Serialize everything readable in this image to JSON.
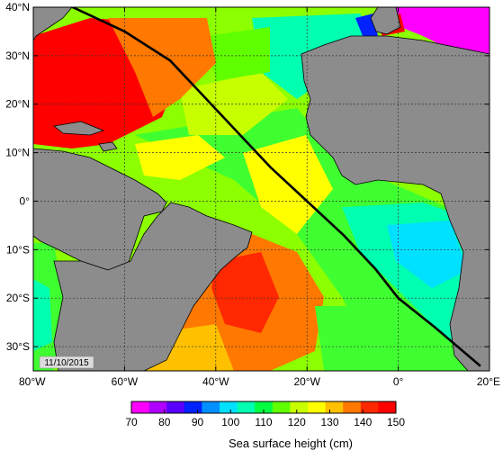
{
  "map": {
    "date_label": "11/10/2015",
    "lat_ticks": [
      "40°N",
      "30°N",
      "20°N",
      "10°N",
      "0°",
      "10°S",
      "20°S",
      "30°S"
    ],
    "lon_ticks": [
      "80°W",
      "60°W",
      "40°W",
      "20°W",
      "0°",
      "20°E"
    ],
    "lat_values": [
      40,
      30,
      20,
      10,
      0,
      -10,
      -20,
      -30
    ],
    "lon_values": [
      -80,
      -60,
      -40,
      -20,
      0,
      20
    ],
    "extent": {
      "lon_min": -80,
      "lon_max": 20,
      "lat_min": -35,
      "lat_max": 40
    },
    "grid_lines": true,
    "ship_track": {
      "color": "#000000",
      "points": [
        [
          -72.5,
          40.5
        ],
        [
          -60,
          35
        ],
        [
          -50,
          29
        ],
        [
          -43,
          22
        ],
        [
          -35,
          14
        ],
        [
          -28,
          7
        ],
        [
          -20,
          0
        ],
        [
          -12,
          -7
        ],
        [
          -5,
          -14
        ],
        [
          0,
          -20
        ],
        [
          8,
          -26
        ],
        [
          18,
          -34
        ]
      ]
    }
  },
  "colorbar": {
    "title": "Sea surface height (cm)",
    "labels": [
      "70",
      "80",
      "90",
      "100",
      "110",
      "120",
      "130",
      "140",
      "150"
    ],
    "values": [
      70,
      80,
      90,
      100,
      110,
      120,
      130,
      140,
      150
    ],
    "colors": [
      "#ff00ff",
      "#b000ff",
      "#5a00ff",
      "#0022ff",
      "#0090ff",
      "#00e0ff",
      "#00ffb0",
      "#00ff40",
      "#60ff00",
      "#c8ff00",
      "#ffff00",
      "#ffc000",
      "#ff7800",
      "#ff2800",
      "#ff0000"
    ]
  },
  "land_color": "#8c8c8c"
}
